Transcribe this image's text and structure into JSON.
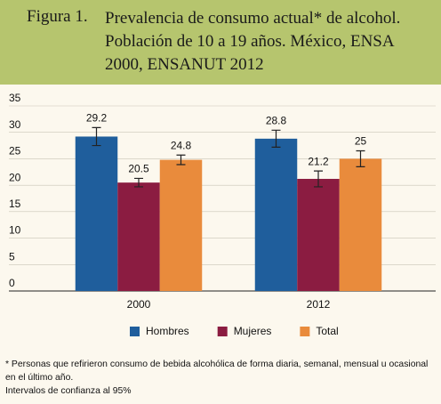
{
  "chart_data": {
    "type": "bar",
    "figure_label": "Figura 1.",
    "title": "Prevalencia de consumo actual* de alcohol. Población de 10 a 19 años. México, ENSA 2000, ENSANUT 2012",
    "categories": [
      "2000",
      "2012"
    ],
    "series": [
      {
        "name": "Hombres",
        "color": "#1f5e9c",
        "values": [
          29.2,
          28.8
        ],
        "errors": [
          1.7,
          1.6
        ]
      },
      {
        "name": "Mujeres",
        "color": "#8b1c41",
        "values": [
          20.5,
          21.2
        ],
        "errors": [
          0.8,
          1.5
        ]
      },
      {
        "name": "Total",
        "color": "#e98b3c",
        "values": [
          24.8,
          25
        ],
        "errors": [
          0.9,
          1.5
        ]
      }
    ],
    "ylim": [
      0,
      35
    ],
    "yticks": [
      0,
      5,
      10,
      15,
      20,
      25,
      30,
      35
    ],
    "grid": true,
    "legend": "bottom",
    "footnotes": [
      "* Personas que refirieron consumo de bebida alcohólica de forma diaria, semanal, mensual u ocasional en el último año.",
      "Intervalos de confianza al 95%"
    ]
  }
}
